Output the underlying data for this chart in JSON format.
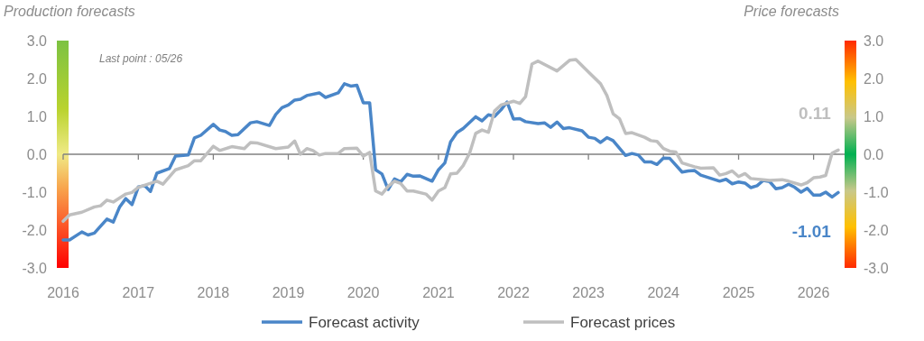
{
  "chart_data": {
    "type": "line",
    "ylabel": "Production forecasts",
    "y2label": "Price forecasts",
    "annotations": [
      "Last point : 05/26"
    ],
    "xlim": [
      "2016-01",
      "2026-06"
    ],
    "xticks": [
      "2016",
      "2017",
      "2018",
      "2019",
      "2020",
      "2021",
      "2022",
      "2023",
      "2024",
      "2025",
      "2026"
    ],
    "ylim": [
      -3,
      3
    ],
    "yticks": [
      {
        "value": -3,
        "label": "-3.0"
      },
      {
        "value": -2,
        "label": "-2.0"
      },
      {
        "value": -1,
        "label": "-1.0"
      },
      {
        "value": 0,
        "label": "0.0"
      },
      {
        "value": 1,
        "label": "1.0"
      },
      {
        "value": 2,
        "label": "2.0"
      },
      {
        "value": 3,
        "label": "3.0"
      }
    ],
    "y2lim": [
      -3,
      3
    ],
    "y2ticks": [
      {
        "value": -3,
        "label": "-3.0"
      },
      {
        "value": -2,
        "label": "-2.0"
      },
      {
        "value": -1,
        "label": "-1.0"
      },
      {
        "value": 0,
        "label": "0.0"
      },
      {
        "value": 1,
        "label": "1.0"
      },
      {
        "value": 2,
        "label": "2.0"
      },
      {
        "value": 3,
        "label": "3.0"
      }
    ],
    "legend": "bottom",
    "marker": "none",
    "line_style": "solid",
    "series": [
      {
        "name": "Forecast activity",
        "color": "#4a86c8",
        "x": [
          "2016-01",
          "2016-02",
          "2016-04",
          "2016-05",
          "2016-06",
          "2016-08",
          "2016-09",
          "2016-10",
          "2016-11",
          "2016-12",
          "2017-01",
          "2017-02",
          "2017-03",
          "2017-04",
          "2017-06",
          "2017-07",
          "2017-09",
          "2017-10",
          "2017-11",
          "2018-01",
          "2018-02",
          "2018-03",
          "2018-04",
          "2018-05",
          "2018-07",
          "2018-08",
          "2018-10",
          "2018-11",
          "2018-12",
          "2019-01",
          "2019-02",
          "2019-03",
          "2019-04",
          "2019-06",
          "2019-07",
          "2019-09",
          "2019-10",
          "2019-11",
          "2019-12",
          "2020-01",
          "2020-02",
          "2020-03",
          "2020-04",
          "2020-05",
          "2020-06",
          "2020-07",
          "2020-08",
          "2020-09",
          "2020-10",
          "2020-12",
          "2021-01",
          "2021-02",
          "2021-03",
          "2021-04",
          "2021-05",
          "2021-07",
          "2021-08",
          "2021-09",
          "2021-10",
          "2021-11",
          "2021-12",
          "2022-01",
          "2022-02",
          "2022-03",
          "2022-05",
          "2022-06",
          "2022-07",
          "2022-08",
          "2022-09",
          "2022-10",
          "2022-12",
          "2023-01",
          "2023-02",
          "2023-03",
          "2023-04",
          "2023-05",
          "2023-07",
          "2023-08",
          "2023-09",
          "2023-10",
          "2023-11",
          "2023-12",
          "2024-01",
          "2024-02",
          "2024-04",
          "2024-05",
          "2024-06",
          "2024-07",
          "2024-10",
          "2024-11",
          "2024-12",
          "2025-01",
          "2025-02",
          "2025-03",
          "2025-04",
          "2025-05",
          "2025-06",
          "2025-07",
          "2025-08",
          "2025-09",
          "2025-10",
          "2025-11",
          "2025-12",
          "2026-01",
          "2026-02",
          "2026-03",
          "2026-04",
          "2026-05"
        ],
        "values": [
          -2.26,
          -2.26,
          -2.05,
          -2.13,
          -2.08,
          -1.71,
          -1.79,
          -1.4,
          -1.17,
          -1.33,
          -0.86,
          -0.83,
          -0.98,
          -0.5,
          -0.38,
          -0.05,
          -0.02,
          0.43,
          0.5,
          0.79,
          0.64,
          0.6,
          0.5,
          0.52,
          0.83,
          0.86,
          0.76,
          1.05,
          1.23,
          1.3,
          1.43,
          1.45,
          1.55,
          1.62,
          1.5,
          1.62,
          1.86,
          1.8,
          1.82,
          1.36,
          1.36,
          -0.41,
          -0.52,
          -0.93,
          -0.65,
          -0.73,
          -0.53,
          -0.58,
          -0.57,
          -0.71,
          -0.41,
          -0.23,
          0.33,
          0.57,
          0.68,
          0.99,
          0.88,
          1.04,
          1.0,
          1.17,
          1.38,
          0.93,
          0.94,
          0.86,
          0.81,
          0.83,
          0.71,
          0.85,
          0.68,
          0.7,
          0.62,
          0.45,
          0.42,
          0.31,
          0.44,
          0.36,
          -0.03,
          0.02,
          -0.02,
          -0.2,
          -0.2,
          -0.27,
          -0.1,
          -0.11,
          -0.47,
          -0.44,
          -0.43,
          -0.55,
          -0.71,
          -0.66,
          -0.78,
          -0.73,
          -0.76,
          -0.88,
          -0.83,
          -0.69,
          -0.72,
          -0.91,
          -0.88,
          -0.79,
          -0.87,
          -1.0,
          -0.9,
          -1.08,
          -1.08,
          -1.0,
          -1.13,
          -1.01
        ],
        "value_labels": [
          null,
          null,
          null,
          null,
          null,
          null,
          null,
          null,
          null,
          null,
          null,
          null,
          null,
          null,
          null,
          null,
          null,
          null,
          null,
          null,
          null,
          null,
          null,
          null,
          null,
          null,
          null,
          null,
          null,
          null,
          null,
          null,
          null,
          null,
          null,
          null,
          null,
          null,
          null,
          null,
          null,
          null,
          null,
          null,
          null,
          null,
          null,
          null,
          null,
          null,
          null,
          null,
          null,
          null,
          null,
          null,
          null,
          null,
          null,
          null,
          null,
          null,
          null,
          null,
          null,
          null,
          null,
          null,
          null,
          null,
          null,
          null,
          null,
          null,
          null,
          null,
          null,
          null,
          null,
          null,
          null,
          null,
          null,
          null,
          null,
          null,
          null,
          null,
          null,
          null,
          null,
          null,
          null,
          null,
          null,
          null,
          null,
          null,
          null,
          null,
          null,
          null,
          null,
          null,
          null,
          null,
          null,
          "-1.01"
        ]
      },
      {
        "name": "Forecast prices",
        "color": "#bfbfbf",
        "x": [
          "2016-01",
          "2016-02",
          "2016-04",
          "2016-06",
          "2016-07",
          "2016-08",
          "2016-09",
          "2016-11",
          "2016-12",
          "2017-01",
          "2017-04",
          "2017-05",
          "2017-07",
          "2017-09",
          "2017-10",
          "2017-11",
          "2018-01",
          "2018-02",
          "2018-04",
          "2018-06",
          "2018-07",
          "2018-08",
          "2018-11",
          "2019-01",
          "2019-02",
          "2019-03",
          "2019-04",
          "2019-05",
          "2019-06",
          "2019-07",
          "2019-09",
          "2019-10",
          "2019-12",
          "2020-01",
          "2020-02",
          "2020-03",
          "2020-04",
          "2020-05",
          "2020-06",
          "2020-07",
          "2020-08",
          "2020-09",
          "2020-11",
          "2020-12",
          "2021-01",
          "2021-02",
          "2021-03",
          "2021-04",
          "2021-05",
          "2021-06",
          "2021-07",
          "2021-08",
          "2021-09",
          "2021-10",
          "2021-11",
          "2022-01",
          "2022-02",
          "2022-03",
          "2022-04",
          "2022-05",
          "2022-08",
          "2022-10",
          "2022-11",
          "2023-01",
          "2023-03",
          "2023-04",
          "2023-05",
          "2023-06",
          "2023-07",
          "2023-08",
          "2023-10",
          "2023-11",
          "2023-12",
          "2024-01",
          "2024-02",
          "2024-03",
          "2024-04",
          "2024-06",
          "2024-07",
          "2024-09",
          "2024-10",
          "2024-11",
          "2024-12",
          "2025-01",
          "2025-02",
          "2025-03",
          "2025-05",
          "2025-06",
          "2025-08",
          "2025-09",
          "2025-11",
          "2025-12",
          "2026-01",
          "2026-02",
          "2026-03",
          "2026-04",
          "2026-05"
        ],
        "values": [
          -1.77,
          -1.6,
          -1.53,
          -1.39,
          -1.36,
          -1.21,
          -1.26,
          -1.05,
          -1.01,
          -0.87,
          -0.71,
          -0.79,
          -0.41,
          -0.3,
          -0.17,
          -0.17,
          0.21,
          0.1,
          0.2,
          0.15,
          0.31,
          0.3,
          0.15,
          0.19,
          0.35,
          0.0,
          0.15,
          0.1,
          -0.02,
          0.02,
          0.02,
          0.15,
          0.16,
          -0.05,
          0.05,
          -0.97,
          -1.05,
          -0.85,
          -0.71,
          -0.77,
          -0.97,
          -0.97,
          -1.05,
          -1.21,
          -0.97,
          -0.88,
          -0.52,
          -0.5,
          -0.3,
          0.02,
          0.55,
          0.64,
          0.58,
          1.14,
          1.3,
          1.4,
          1.34,
          1.52,
          2.38,
          2.46,
          2.2,
          2.48,
          2.5,
          2.17,
          1.86,
          1.55,
          1.07,
          0.94,
          0.55,
          0.57,
          0.45,
          0.36,
          0.34,
          0.15,
          0.08,
          0.06,
          -0.23,
          -0.33,
          -0.37,
          -0.36,
          -0.55,
          -0.51,
          -0.44,
          -0.59,
          -0.51,
          -0.64,
          -0.67,
          -0.69,
          -0.67,
          -0.71,
          -0.81,
          -0.75,
          -0.62,
          -0.6,
          -0.56,
          0.03,
          0.11
        ],
        "value_labels": [
          null,
          null,
          null,
          null,
          null,
          null,
          null,
          null,
          null,
          null,
          null,
          null,
          null,
          null,
          null,
          null,
          null,
          null,
          null,
          null,
          null,
          null,
          null,
          null,
          null,
          null,
          null,
          null,
          null,
          null,
          null,
          null,
          null,
          null,
          null,
          null,
          null,
          null,
          null,
          null,
          null,
          null,
          null,
          null,
          null,
          null,
          null,
          null,
          null,
          null,
          null,
          null,
          null,
          null,
          null,
          null,
          null,
          null,
          null,
          null,
          null,
          null,
          null,
          null,
          null,
          null,
          null,
          null,
          null,
          null,
          null,
          null,
          null,
          null,
          null,
          null,
          null,
          null,
          null,
          null,
          null,
          null,
          null,
          null,
          null,
          null,
          null,
          null,
          null,
          null,
          null,
          null,
          null,
          null,
          null,
          null,
          "0.11"
        ]
      }
    ]
  }
}
